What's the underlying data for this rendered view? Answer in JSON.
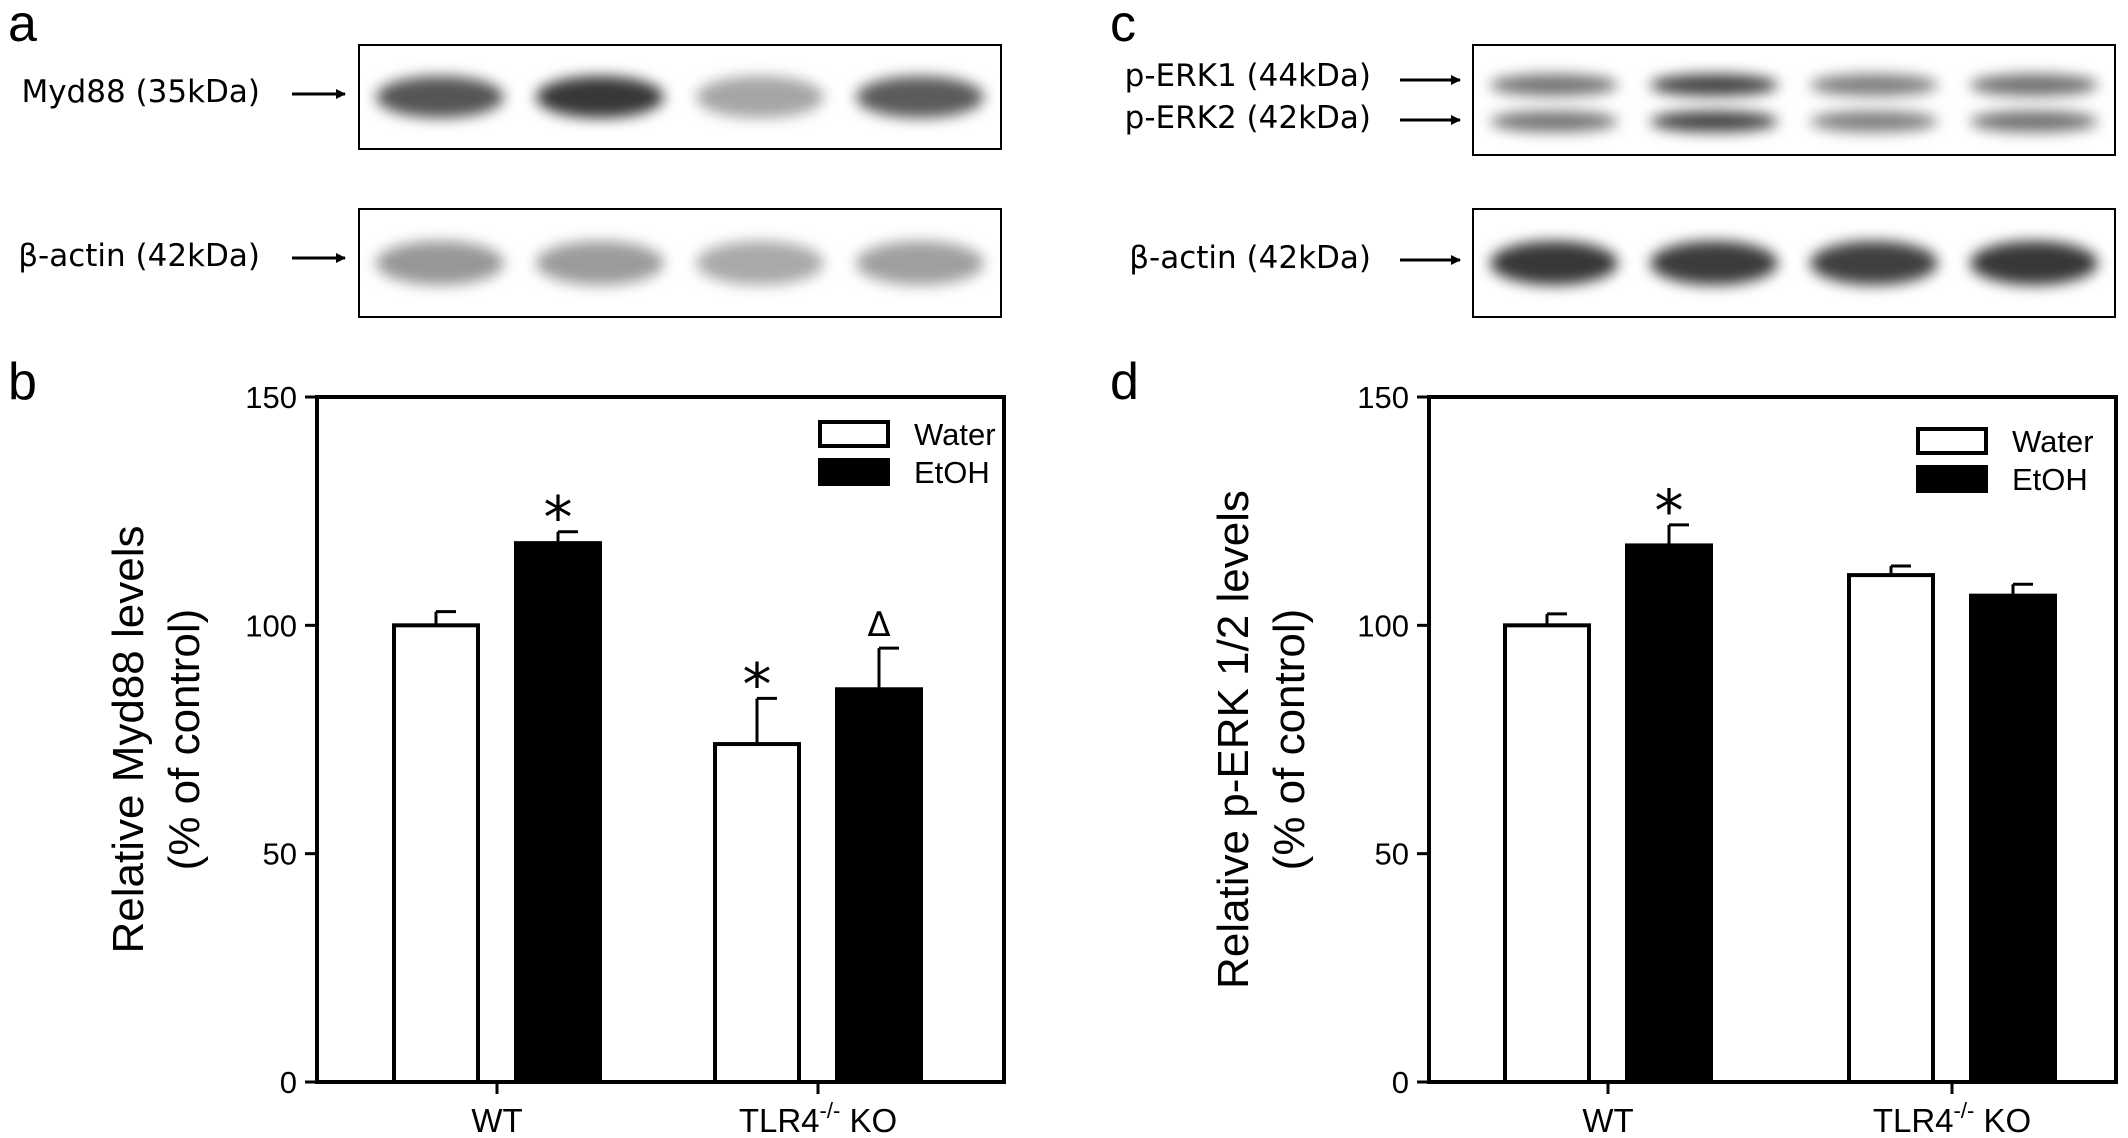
{
  "panels": {
    "a": {
      "letter": "a",
      "blots": [
        {
          "label": "Myd88 (35kDa)",
          "band_intensity": [
            0.75,
            0.9,
            0.35,
            0.72
          ]
        },
        {
          "label": "β-actin (42kDa)",
          "band_intensity": [
            0.42,
            0.4,
            0.33,
            0.38
          ]
        }
      ]
    },
    "c": {
      "letter": "c",
      "blots": [
        {
          "labels": [
            "p-ERK1 (44kDa)",
            "p-ERK2 (42kDa)"
          ],
          "band_intensity": [
            0.6,
            0.85,
            0.55,
            0.62
          ]
        },
        {
          "label": "β-actin (42kDa)",
          "band_intensity": [
            0.9,
            0.88,
            0.86,
            0.9
          ]
        }
      ]
    },
    "b": {
      "letter": "b"
    },
    "d": {
      "letter": "d"
    }
  },
  "chart_data": [
    {
      "panel": "b",
      "type": "bar",
      "categories": [
        "WT",
        "TLR4-/- KO"
      ],
      "category_labels": [
        {
          "base": "WT",
          "sup": "",
          "suffix": ""
        },
        {
          "base": "TLR4",
          "sup": "-/-",
          "suffix": " KO"
        }
      ],
      "series": [
        {
          "name": "Water",
          "values": [
            100,
            74
          ],
          "errors": [
            3,
            10
          ],
          "color": "#ffffff"
        },
        {
          "name": "EtOH",
          "values": [
            118,
            86
          ],
          "errors": [
            2.5,
            9
          ],
          "color": "#000000"
        }
      ],
      "annotations": [
        {
          "series": 1,
          "category": 0,
          "text": "*"
        },
        {
          "series": 0,
          "category": 1,
          "text": "*"
        },
        {
          "series": 1,
          "category": 1,
          "text": "Δ"
        }
      ],
      "ylabel_lines": [
        "Relative Myd88 levels",
        "(% of control)"
      ],
      "xlabel": "",
      "yticks": [
        0,
        50,
        100,
        150
      ],
      "ylim": [
        0,
        150
      ],
      "legend_position": "top-right",
      "grid": false
    },
    {
      "panel": "d",
      "type": "bar",
      "categories": [
        "WT",
        "TLR4-/- KO"
      ],
      "category_labels": [
        {
          "base": "WT",
          "sup": "",
          "suffix": ""
        },
        {
          "base": "TLR4",
          "sup": "-/-",
          "suffix": " KO"
        }
      ],
      "series": [
        {
          "name": "Water",
          "values": [
            100,
            111
          ],
          "errors": [
            2.5,
            2
          ],
          "color": "#ffffff"
        },
        {
          "name": "EtOH",
          "values": [
            117.5,
            106.5
          ],
          "errors": [
            4.5,
            2.5
          ],
          "color": "#000000"
        }
      ],
      "annotations": [
        {
          "series": 1,
          "category": 0,
          "text": "*"
        }
      ],
      "ylabel_lines": [
        "Relative p-ERK 1/2 levels",
        "(% of control)"
      ],
      "xlabel": "",
      "yticks": [
        0,
        50,
        100,
        150
      ],
      "ylim": [
        0,
        150
      ],
      "legend_position": "top-right",
      "grid": false
    }
  ]
}
